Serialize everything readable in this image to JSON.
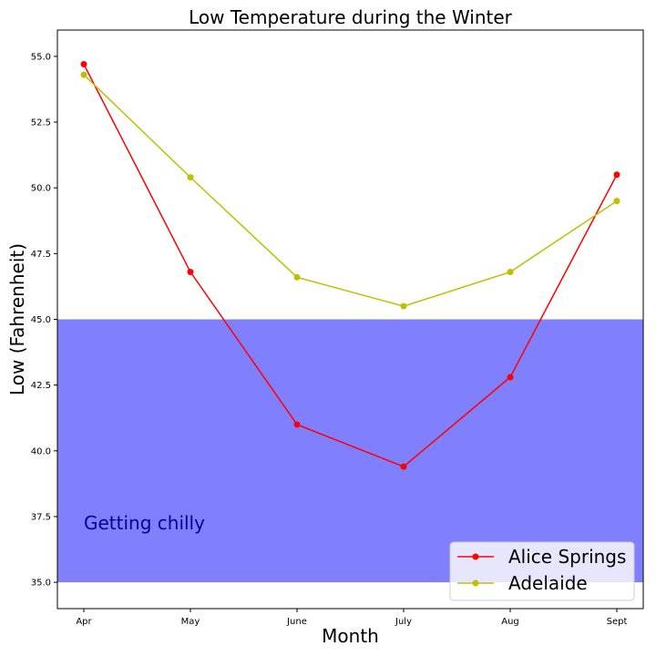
{
  "chart_data": {
    "type": "line",
    "title": "Low Temperature during the Winter",
    "xlabel": "Month",
    "ylabel": "Low (Fahrenheit)",
    "categories": [
      "Apr",
      "May",
      "June",
      "July",
      "Aug",
      "Sept"
    ],
    "ylim": [
      34.0,
      56.0
    ],
    "yticks": [
      35.0,
      37.5,
      40.0,
      42.5,
      45.0,
      47.5,
      50.0,
      52.5,
      55.0
    ],
    "ytick_labels": [
      "35.0",
      "37.5",
      "40.0",
      "42.5",
      "45.0",
      "47.5",
      "50.0",
      "52.5",
      "55.0"
    ],
    "grid": false,
    "legend_position": "lower-right",
    "series": [
      {
        "name": "Alice Springs",
        "color": "#ff0000",
        "marker": "circle",
        "values": [
          54.7,
          46.8,
          41.0,
          39.4,
          42.8,
          50.5
        ]
      },
      {
        "name": "Adelaide",
        "color": "#bfbf00",
        "marker": "circle",
        "values": [
          54.3,
          50.4,
          46.6,
          45.5,
          46.8,
          49.5
        ]
      }
    ],
    "shaded_band": {
      "y_from": 35.0,
      "y_to": 45.0,
      "color": "#8080ff",
      "label": "Getting chilly",
      "label_color": "#0000a0"
    }
  }
}
